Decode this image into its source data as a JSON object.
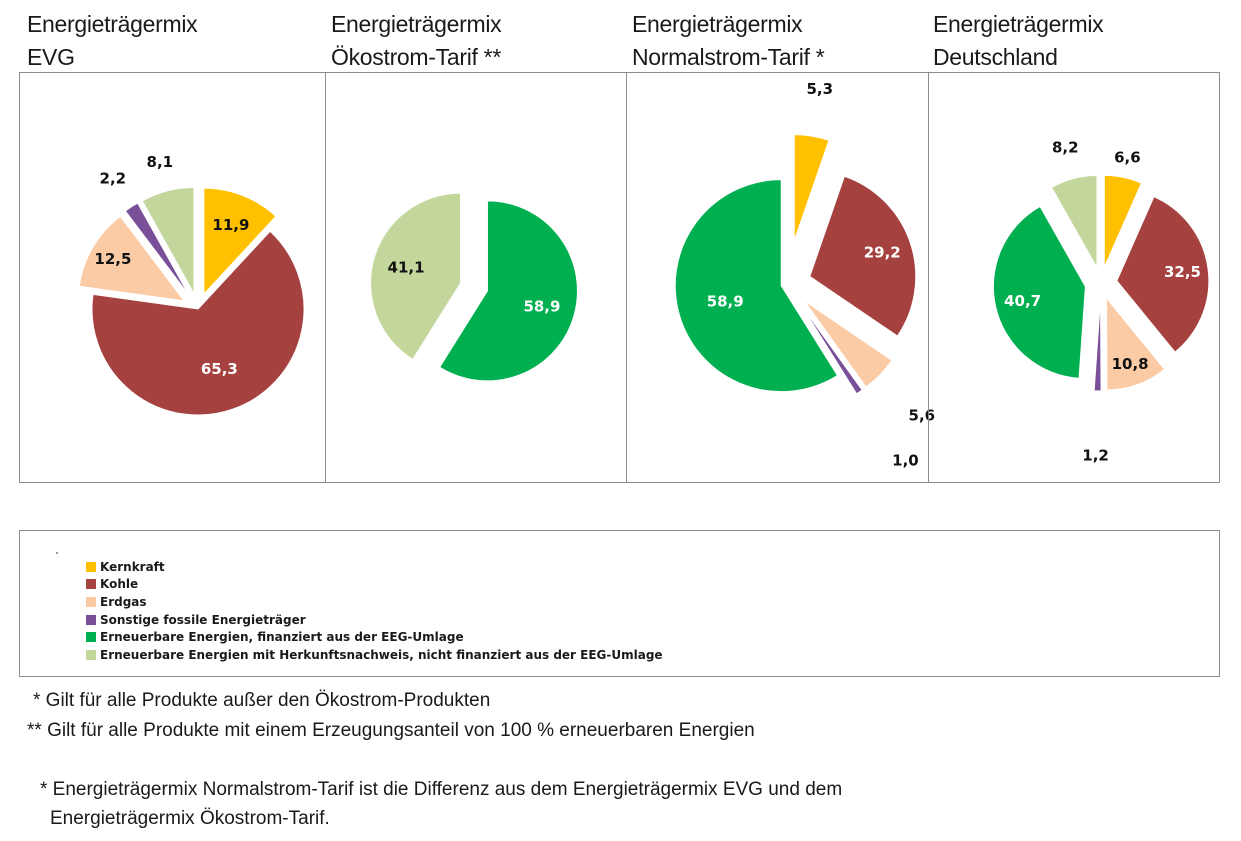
{
  "chart_data": [
    {
      "type": "pie",
      "title_line1": "Energieträgermix",
      "title_line2": "EVG",
      "slices": [
        {
          "category": "Kernkraft",
          "value": 11.9,
          "label": "11,9"
        },
        {
          "category": "Kohle",
          "value": 65.3,
          "label": "65,3"
        },
        {
          "category": "Erdgas",
          "value": 12.5,
          "label": "12,5"
        },
        {
          "category": "Sonstige fossile Energieträger",
          "value": 2.2,
          "label": "2,2"
        },
        {
          "category": "Erneuerbare Energien mit Herkunftsnachweis, nicht finanziert aus der EEG-Umlage",
          "value": 8.1,
          "label": "8,1"
        }
      ]
    },
    {
      "type": "pie",
      "title_line1": "Energieträgermix",
      "title_line2": "Ökostrom-Tarif **",
      "slices": [
        {
          "category": "Erneuerbare Energien, finanziert aus der EEG-Umlage",
          "value": 58.9,
          "label": "58,9"
        },
        {
          "category": "Erneuerbare Energien mit Herkunftsnachweis, nicht finanziert aus der EEG-Umlage",
          "value": 41.1,
          "label": "41,1"
        }
      ]
    },
    {
      "type": "pie",
      "title_line1": "Energieträgermix",
      "title_line2": "Normalstrom-Tarif *",
      "slices": [
        {
          "category": "Kernkraft",
          "value": 5.3,
          "label": "5,3"
        },
        {
          "category": "Kohle",
          "value": 29.2,
          "label": "29,2"
        },
        {
          "category": "Erdgas",
          "value": 5.6,
          "label": "5,6"
        },
        {
          "category": "Sonstige fossile Energieträger",
          "value": 1.0,
          "label": "1,0"
        },
        {
          "category": "Erneuerbare Energien, finanziert aus der EEG-Umlage",
          "value": 58.9,
          "label": "58,9"
        }
      ]
    },
    {
      "type": "pie",
      "title_line1": "Energieträgermix",
      "title_line2": "Deutschland",
      "slices": [
        {
          "category": "Kernkraft",
          "value": 6.6,
          "label": "6,6"
        },
        {
          "category": "Kohle",
          "value": 32.5,
          "label": "32,5"
        },
        {
          "category": "Erdgas",
          "value": 10.8,
          "label": "10,8"
        },
        {
          "category": "Sonstige fossile Energieträger",
          "value": 1.2,
          "label": "1,2"
        },
        {
          "category": "Erneuerbare Energien, finanziert aus der EEG-Umlage",
          "value": 40.7,
          "label": "40,7"
        },
        {
          "category": "Erneuerbare Energien mit Herkunftsnachweis, nicht finanziert aus der EEG-Umlage",
          "value": 8.2,
          "label": "8,2"
        }
      ]
    }
  ],
  "legend": [
    {
      "label": "Kernkraft",
      "color": "#FFC000"
    },
    {
      "label": "Kohle",
      "color": "#A5413F"
    },
    {
      "label": "Erdgas",
      "color": "#FBCBA6"
    },
    {
      "label": "Sonstige fossile Energieträger",
      "color": "#7A4F9A"
    },
    {
      "label": "Erneuerbare Energien, finanziert aus der EEG-Umlage",
      "color": "#00B050"
    },
    {
      "label": "Erneuerbare Energien mit Herkunftsnachweis, nicht finanziert aus der EEG-Umlage",
      "color": "#C3D69B"
    }
  ],
  "notes": {
    "n1": "* Gilt für alle Produkte außer den Ökostrom-Produkten",
    "n2": "** Gilt für alle Produkte mit einem Erzeugungsanteil von 100 % erneuerbaren Energien",
    "n3_line1": "* Energieträgermix Normalstrom-Tarif ist die Differenz aus dem Energieträgermix  EVG und dem",
    "n3_line2": "Energieträgermix Ökostrom-Tarif."
  }
}
